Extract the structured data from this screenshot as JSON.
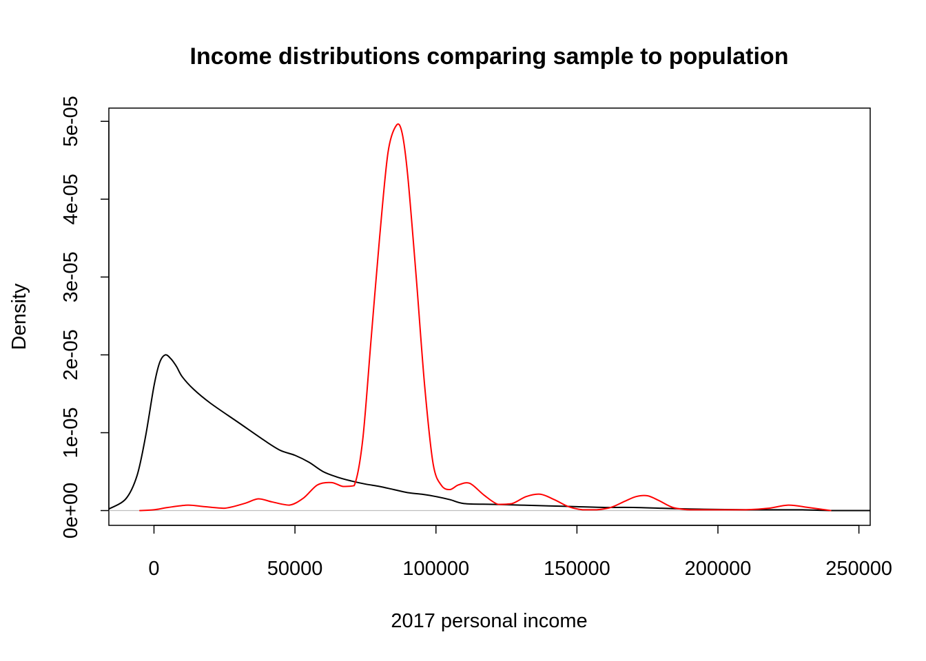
{
  "chart_data": {
    "type": "line",
    "title": "Income distributions comparing sample to population",
    "xlabel": "2017 personal income",
    "ylabel": "Density",
    "xlim": [
      -16000,
      254000
    ],
    "ylim": [
      -1.9e-06,
      5.17e-05
    ],
    "x_ticks": [
      0,
      50000,
      100000,
      150000,
      200000,
      250000
    ],
    "x_tick_labels": [
      "0",
      "50000",
      "100000",
      "150000",
      "200000",
      "250000"
    ],
    "y_ticks": [
      0,
      1e-05,
      2e-05,
      3e-05,
      4e-05,
      5e-05
    ],
    "y_tick_labels": [
      "0e+00",
      "1e-05",
      "2e-05",
      "3e-05",
      "4e-05",
      "5e-05"
    ],
    "reference_line": {
      "y": 0,
      "color": "#bebebe"
    },
    "grid": false,
    "series": [
      {
        "color": "#000000",
        "x": [
          -16000,
          -10000,
          -6000,
          -3000,
          0,
          2000,
          4000,
          6000,
          8000,
          10000,
          14000,
          20000,
          30000,
          40000,
          45000,
          50000,
          55000,
          60000,
          65000,
          70000,
          75000,
          80000,
          85000,
          90000,
          95000,
          100000,
          105000,
          110000,
          120000,
          130000,
          140000,
          150000,
          160000,
          170000,
          180000,
          190000,
          200000,
          210000,
          220000,
          230000,
          240000,
          254000
        ],
        "y": [
          2e-07,
          1.5e-06,
          4.5e-06,
          9.5e-06,
          1.6e-05,
          1.9e-05,
          2e-05,
          1.95e-05,
          1.85e-05,
          1.72e-05,
          1.56e-05,
          1.38e-05,
          1.13e-05,
          8.8e-06,
          7.7e-06,
          7.1e-06,
          6.2e-06,
          5e-06,
          4.3e-06,
          3.8e-06,
          3.4e-06,
          3.1e-06,
          2.7e-06,
          2.3e-06,
          2.1e-06,
          1.8e-06,
          1.4e-06,
          9e-07,
          8e-07,
          7e-07,
          6e-07,
          5e-07,
          4e-07,
          4e-07,
          3e-07,
          2e-07,
          1.5e-07,
          1e-07,
          1e-07,
          1e-07,
          0,
          0
        ]
      },
      {
        "color": "#ff0000",
        "x": [
          -5000,
          0,
          5000,
          12000,
          18000,
          25000,
          32000,
          37000,
          42000,
          48000,
          53000,
          58000,
          63000,
          67000,
          71000,
          74000,
          77000,
          80000,
          83000,
          86000,
          88000,
          90000,
          93000,
          96000,
          99000,
          102000,
          105000,
          108000,
          112000,
          117000,
          122000,
          127000,
          132000,
          137000,
          142000,
          147000,
          152000,
          157000,
          162000,
          167000,
          171000,
          175000,
          179000,
          184000,
          190000,
          200000,
          210000,
          218000,
          225000,
          232000,
          240000
        ],
        "y": [
          0,
          1e-07,
          4e-07,
          7e-07,
          5e-07,
          3e-07,
          9e-07,
          1.5e-06,
          1.1e-06,
          7e-07,
          1.6e-06,
          3.3e-06,
          3.6e-06,
          3.1e-06,
          3.2e-06,
          9e-06,
          2.2e-05,
          3.5e-05,
          4.6e-05,
          4.95e-05,
          4.85e-05,
          4.3e-05,
          3e-05,
          1.6e-05,
          6e-06,
          3.2e-06,
          2.7e-06,
          3.3e-06,
          3.5e-06,
          2e-06,
          8e-07,
          9e-07,
          1.8e-06,
          2.1e-06,
          1.4e-06,
          5e-07,
          1e-07,
          1e-07,
          4e-07,
          1.2e-06,
          1.8e-06,
          1.9e-06,
          1.3e-06,
          4e-07,
          1e-07,
          1e-07,
          1e-07,
          3e-07,
          7e-07,
          4e-07,
          0
        ]
      }
    ]
  }
}
